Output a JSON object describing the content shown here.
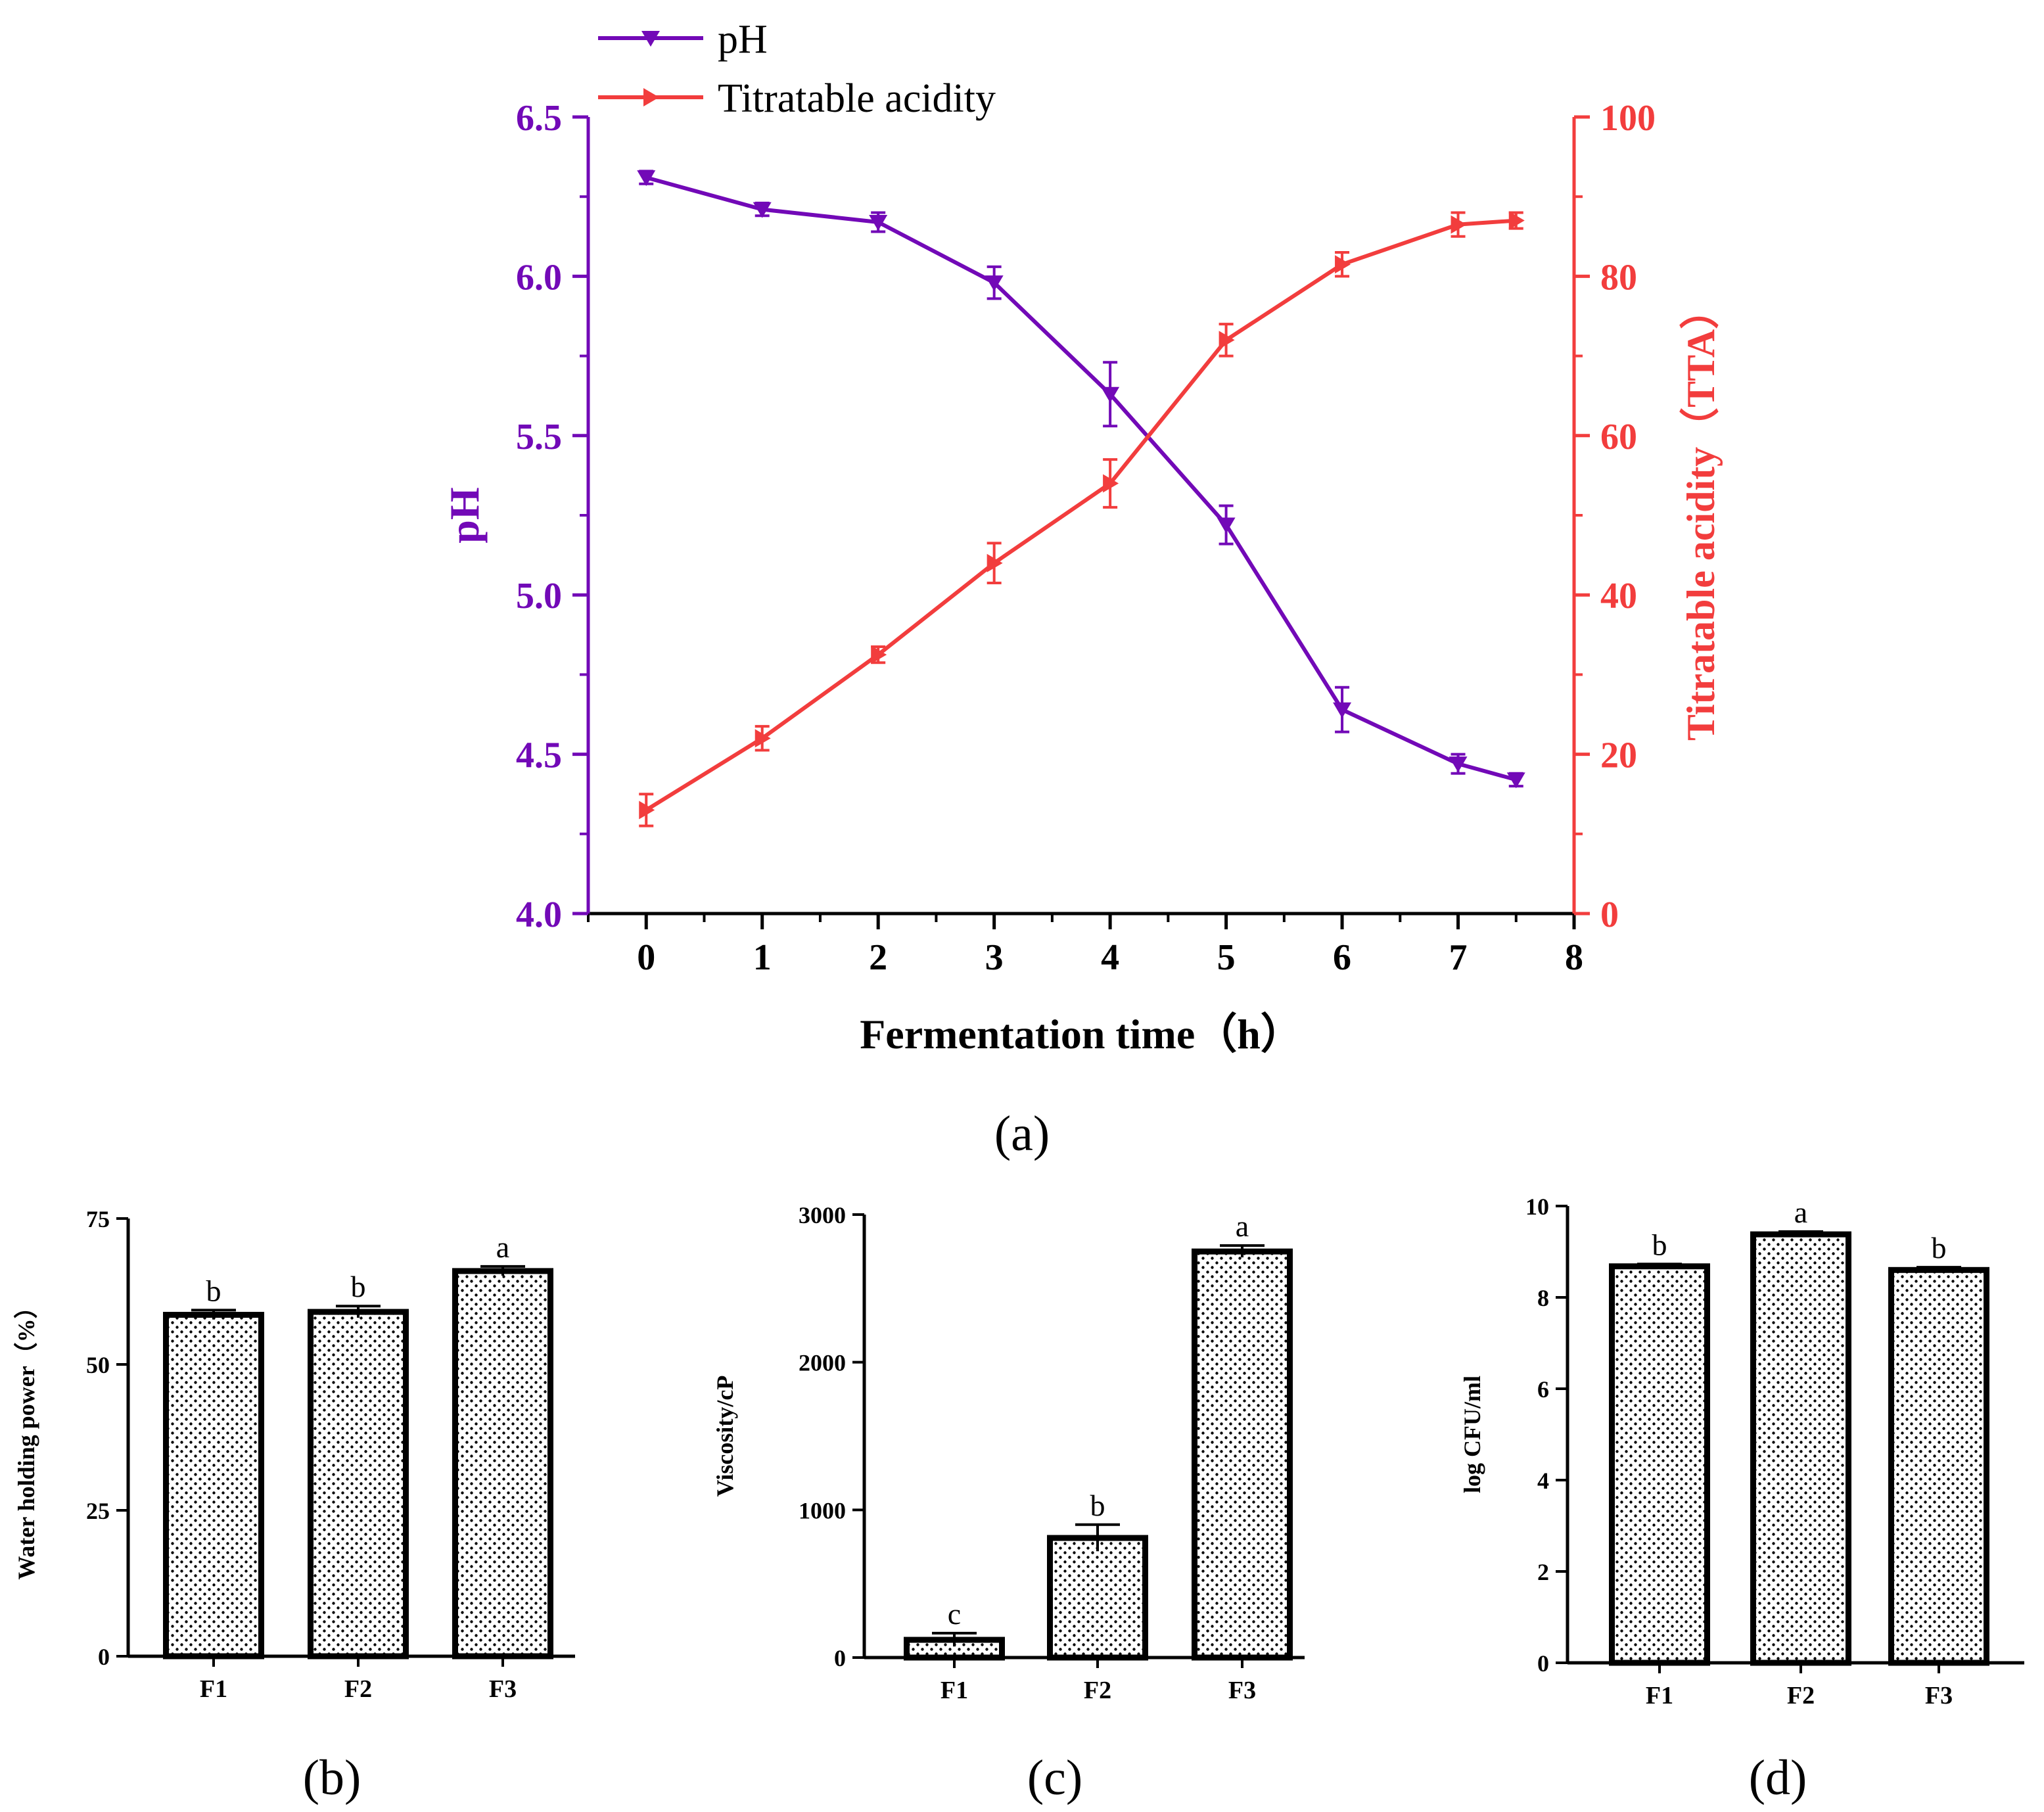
{
  "colors": {
    "ph": "#7209b7",
    "tta": "#f23d3d",
    "axis": "#000000",
    "bar_fill": "#ffffff",
    "bar_dots": "#000000"
  },
  "panel_labels": {
    "a": "(a)",
    "b": "(b)",
    "c": "(c)",
    "d": "(d)"
  },
  "chart_data": [
    {
      "id": "a",
      "type": "line",
      "xlabel": "Fermentation time（h）",
      "ylabel_left": "pH",
      "ylabel_right": "Titratable acidity（TTA）",
      "xlim": [
        -0.5,
        8
      ],
      "xticks": [
        0,
        1,
        2,
        3,
        4,
        5,
        6,
        7,
        8
      ],
      "ylim_left": [
        4.0,
        6.5
      ],
      "yticks_left": [
        "4.0",
        "4.5",
        "5.0",
        "5.5",
        "6.0",
        "6.5"
      ],
      "ylim_right": [
        0,
        100
      ],
      "yticks_right": [
        "0",
        "20",
        "40",
        "60",
        "80",
        "100"
      ],
      "legend": [
        "pH",
        "Titratable acidity"
      ],
      "legend_position": "top-left",
      "series": [
        {
          "name": "pH",
          "axis": "left",
          "marker": "down-triangle",
          "x": [
            0,
            1,
            2,
            3,
            4,
            5,
            6,
            7,
            7.5
          ],
          "y": [
            6.31,
            6.21,
            6.17,
            5.98,
            5.63,
            5.22,
            4.64,
            4.47,
            4.42
          ],
          "err": [
            0.02,
            0.02,
            0.03,
            0.05,
            0.1,
            0.06,
            0.07,
            0.03,
            0.02
          ]
        },
        {
          "name": "Titratable acidity",
          "axis": "right",
          "marker": "right-triangle",
          "x": [
            0,
            1,
            2,
            3,
            4,
            5,
            6,
            7,
            7.5
          ],
          "y": [
            13,
            22,
            32.5,
            44,
            54,
            72,
            81.5,
            86.5,
            87
          ],
          "err": [
            2,
            1.5,
            1,
            2.5,
            3,
            2,
            1.5,
            1.5,
            1
          ]
        }
      ]
    },
    {
      "id": "b",
      "type": "bar",
      "ylabel": "Water holding power（%）",
      "categories": [
        "F1",
        "F2",
        "F3"
      ],
      "values": [
        58.5,
        59,
        66
      ],
      "err": [
        0.8,
        1,
        0.8
      ],
      "letters": [
        "b",
        "b",
        "a"
      ],
      "ylim": [
        0,
        75
      ],
      "yticks": [
        "0",
        "25",
        "50",
        "75"
      ]
    },
    {
      "id": "c",
      "type": "bar",
      "ylabel": "Viscosity/cP",
      "categories": [
        "F1",
        "F2",
        "F3"
      ],
      "values": [
        120,
        810,
        2750
      ],
      "err": [
        45,
        90,
        40
      ],
      "letters": [
        "c",
        "b",
        "a"
      ],
      "ylim": [
        0,
        3000
      ],
      "yticks": [
        "0",
        "1000",
        "2000",
        "3000"
      ]
    },
    {
      "id": "d",
      "type": "bar",
      "ylabel": "log CFU/ml",
      "categories": [
        "F1",
        "F2",
        "F3"
      ],
      "values": [
        8.68,
        9.38,
        8.6
      ],
      "err": [
        0.05,
        0.06,
        0.06
      ],
      "letters": [
        "b",
        "a",
        "b"
      ],
      "ylim": [
        0,
        10
      ],
      "yticks": [
        "0",
        "2",
        "4",
        "6",
        "8",
        "10"
      ]
    }
  ]
}
